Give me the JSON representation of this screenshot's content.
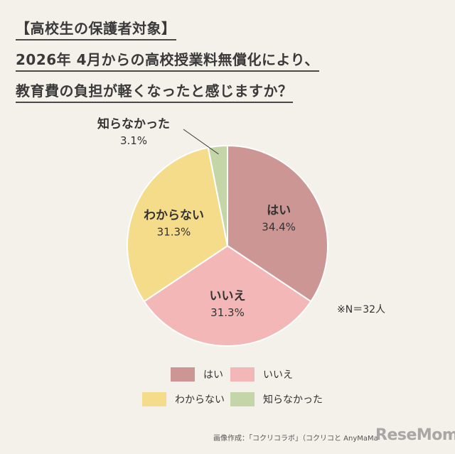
{
  "title": {
    "line1": "【高校生の保護者対象】",
    "line2": "2026年 4月からの高校授業料無償化により、",
    "line3": "教育費の負担が軽くなったと感じますか？"
  },
  "note": "※N＝32人",
  "credit": "画像作成：「コクリコラボ」（コクリコと AnyMaMa",
  "watermark": "ReseMom",
  "colors": {
    "はい": "#cc9695",
    "いいえ": "#f3b7b8",
    "わからない": "#f5dc8b",
    "知らなかった": "#c4d6a8",
    "background": "#f4f0ea"
  },
  "chart_data": {
    "type": "pie",
    "title": "2026年 4月からの高校授業料無償化により、教育費の負担が軽くなったと感じますか？",
    "start": "12 o'clock, clockwise",
    "legend_position": "bottom",
    "slices": [
      {
        "label": "はい",
        "value": 34.4,
        "value_text": "34.4%"
      },
      {
        "label": "いいえ",
        "value": 31.3,
        "value_text": "31.3%"
      },
      {
        "label": "わからない",
        "value": 31.3,
        "value_text": "31.3%"
      },
      {
        "label": "知らなかった",
        "value": 3.1,
        "value_text": "3.1%"
      }
    ]
  }
}
